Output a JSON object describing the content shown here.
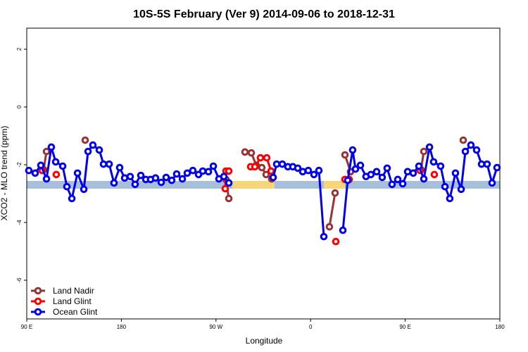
{
  "chart_data": {
    "type": "line",
    "title": "10S-5S February (Ver 9)   2014-09-06 to 2018-12-31",
    "x_label": "Longitude",
    "y_label": "XCO2 - MLO trend (ppm)",
    "xlim": [
      90,
      540
    ],
    "ylim": [
      -7.34,
      2.73
    ],
    "xticks": [
      {
        "value": 90,
        "label": "90 E"
      },
      {
        "value": 180,
        "label": "180"
      },
      {
        "value": 270,
        "label": "90 W"
      },
      {
        "value": 360,
        "label": "0"
      },
      {
        "value": 450,
        "label": "90 E"
      },
      {
        "value": 540,
        "label": "180"
      }
    ],
    "yticks": [
      -6,
      -4,
      -2,
      0,
      2
    ],
    "legend": "bottom-left",
    "series": [
      {
        "name": "Land Nadir",
        "color": "#993333",
        "x": [
          106.1,
          108.8,
          null,
          145.6,
          null,
          279.5,
          282.2,
          null,
          297.6,
          303.6,
          308.3,
          313.6,
          317.7,
          323.0,
          null,
          377.9,
          383.3,
          null,
          392.7,
          398.0,
          null,
          465.0,
          467.7,
          null,
          505.2
        ],
        "values": [
          -2.17,
          -1.54,
          null,
          -1.15,
          null,
          -2.51,
          -3.17,
          null,
          -1.56,
          -1.59,
          -2.02,
          -2.1,
          -2.34,
          -2.49,
          null,
          -4.15,
          -2.98,
          null,
          -1.66,
          -2.24,
          null,
          -2.17,
          -1.54,
          null,
          -1.15
        ]
      },
      {
        "name": "Land Glint",
        "color": "#ff0000",
        "x": [
          104.7,
          null,
          118.1,
          null,
          278.8,
          279.5,
          282.2,
          null,
          303.0,
          307.0,
          312.3,
          318.3,
          322.4,
          null,
          384.0,
          null,
          392.7,
          396.7,
          null,
          464.3,
          null,
          477.7
        ],
        "values": [
          -2.2,
          null,
          -2.34,
          null,
          -2.83,
          -2.22,
          -2.22,
          null,
          -2.07,
          -2.07,
          -1.76,
          -1.76,
          -2.22,
          null,
          -4.66,
          null,
          -2.51,
          -2.51,
          null,
          -2.2,
          null,
          -2.34
        ]
      },
      {
        "name": "Ocean Glint",
        "color": "#0000ee",
        "x": [
          92.0,
          98.0,
          103.4,
          108.8,
          113.4,
          117.5,
          124.2,
          128.2,
          132.9,
          138.3,
          144.3,
          148.3,
          152.9,
          159.0,
          163.0,
          168.4,
          173.0,
          178.4,
          183.1,
          188.4,
          193.1,
          198.5,
          203.2,
          207.8,
          212.5,
          217.9,
          222.6,
          227.9,
          232.6,
          238.0,
          242.7,
          248.0,
          253.4,
          257.4,
          262.8,
          267.5,
          272.8,
          277.5,
          282.2,
          null,
          324.4,
          327.7,
          333.1,
          338.4,
          343.1,
          347.8,
          352.5,
          357.8,
          363.2,
          367.9,
          372.6,
          null,
          390.7,
          395.3,
          400.0,
          402.7,
          407.4,
          412.7,
          417.4,
          422.8,
          428.1,
          432.8,
          437.5,
          442.9,
          447.6,
          452.3,
          457.6,
          463.0,
          467.7,
          473.1,
          477.0,
          483.7,
          487.8,
          492.4,
          497.8,
          503.2,
          507.2,
          512.5,
          517.9,
          522.6,
          527.9,
          532.6,
          537.3
        ],
        "values": [
          -2.2,
          -2.29,
          -2.02,
          -2.49,
          -1.39,
          -1.9,
          -2.05,
          -2.76,
          -3.17,
          -2.29,
          -2.85,
          -1.54,
          -1.32,
          -1.49,
          -1.98,
          -1.98,
          -2.63,
          -2.1,
          -2.46,
          -2.41,
          -2.68,
          -2.37,
          -2.51,
          -2.51,
          -2.46,
          -2.61,
          -2.44,
          -2.54,
          -2.32,
          -2.49,
          -2.29,
          -2.2,
          -2.34,
          -2.22,
          -2.24,
          -2.05,
          -2.49,
          -2.41,
          -2.63,
          null,
          -2.44,
          -1.98,
          -1.98,
          -2.07,
          -2.07,
          -2.12,
          -2.24,
          -2.2,
          -2.34,
          -2.2,
          -4.49,
          null,
          -4.27,
          -2.54,
          -1.49,
          -2.15,
          -2.02,
          -2.41,
          -2.34,
          -2.24,
          -2.44,
          -2.12,
          -2.68,
          -2.51,
          -2.66,
          -2.24,
          -2.29,
          -2.05,
          -2.49,
          -1.39,
          -1.9,
          -2.05,
          -2.76,
          -3.17,
          -2.29,
          -2.85,
          -1.54,
          -1.32,
          -1.49,
          -1.98,
          -1.98,
          -2.63,
          -2.1
        ]
      }
    ]
  }
}
